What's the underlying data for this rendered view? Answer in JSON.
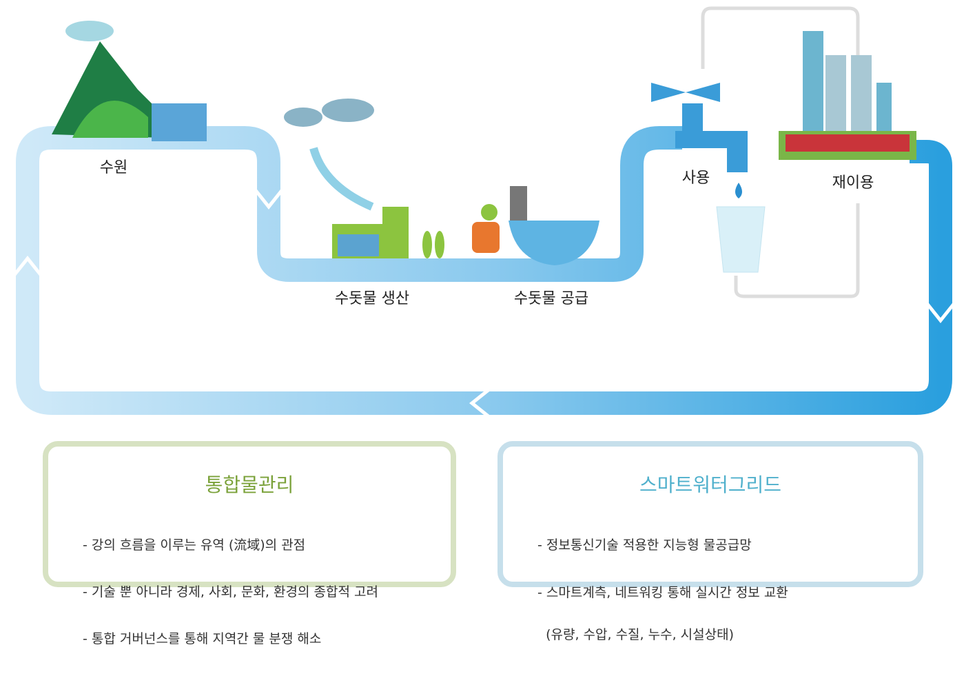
{
  "stages": [
    {
      "label": "수원"
    },
    {
      "label": "수돗물 생산"
    },
    {
      "label": "수돗물 공급"
    },
    {
      "label": "사용"
    },
    {
      "label": "재이용"
    }
  ],
  "panels": [
    {
      "title": "통합물관리",
      "items": [
        "- 강의 흐름을 이루는 유역 (流域)의 관점",
        "- 기술 뿐 아니라 경제, 사회, 문화, 환경의 종합적 고려",
        "- 통합 거버넌스를 통해 지역간 물 분쟁 해소"
      ]
    },
    {
      "title": "스마트워터그리드",
      "items": [
        "- 정보통신기술 적용한 지능형 물공급망",
        "- 스마트계측, 네트워킹 통해 실시간 정보 교환",
        "  (유량, 수압, 수질, 누수, 시설상태)"
      ]
    }
  ]
}
